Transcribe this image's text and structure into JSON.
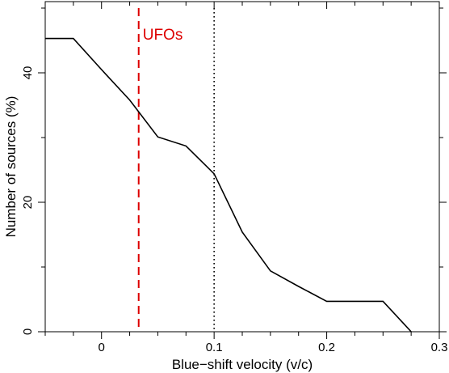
{
  "chart_data": {
    "type": "line",
    "title": "",
    "xlabel": "Blue−shift velocity (v/c)",
    "ylabel": "Number of sources (%)",
    "xlim": [
      -0.05,
      0.3
    ],
    "ylim": [
      0,
      51
    ],
    "grid": false,
    "x_ticks": {
      "major": [
        0,
        0.1,
        0.2,
        0.3
      ],
      "labels": [
        "0",
        "0.1",
        "0.2",
        "0.3"
      ],
      "minor_step": 0.025
    },
    "y_ticks": {
      "major": [
        0,
        20,
        40
      ],
      "labels": [
        "0",
        "20",
        "40"
      ],
      "minor_step": 10
    },
    "series": [
      {
        "color": "#000000",
        "x": [
          -0.05,
          -0.025,
          0.0,
          0.025,
          0.05,
          0.075,
          0.1,
          0.125,
          0.15,
          0.175,
          0.2,
          0.225,
          0.25,
          0.275
        ],
        "y": [
          45.3,
          45.3,
          40.5,
          35.8,
          30.1,
          28.7,
          24.4,
          15.4,
          9.4,
          7.0,
          4.7,
          4.7,
          4.7,
          0.0
        ]
      }
    ],
    "reference_lines": [
      {
        "x": 0.033,
        "style": "dashed",
        "color": "#dd0000",
        "label": "UFOs"
      },
      {
        "x": 0.1,
        "style": "dotted",
        "color": "#000000"
      }
    ]
  }
}
